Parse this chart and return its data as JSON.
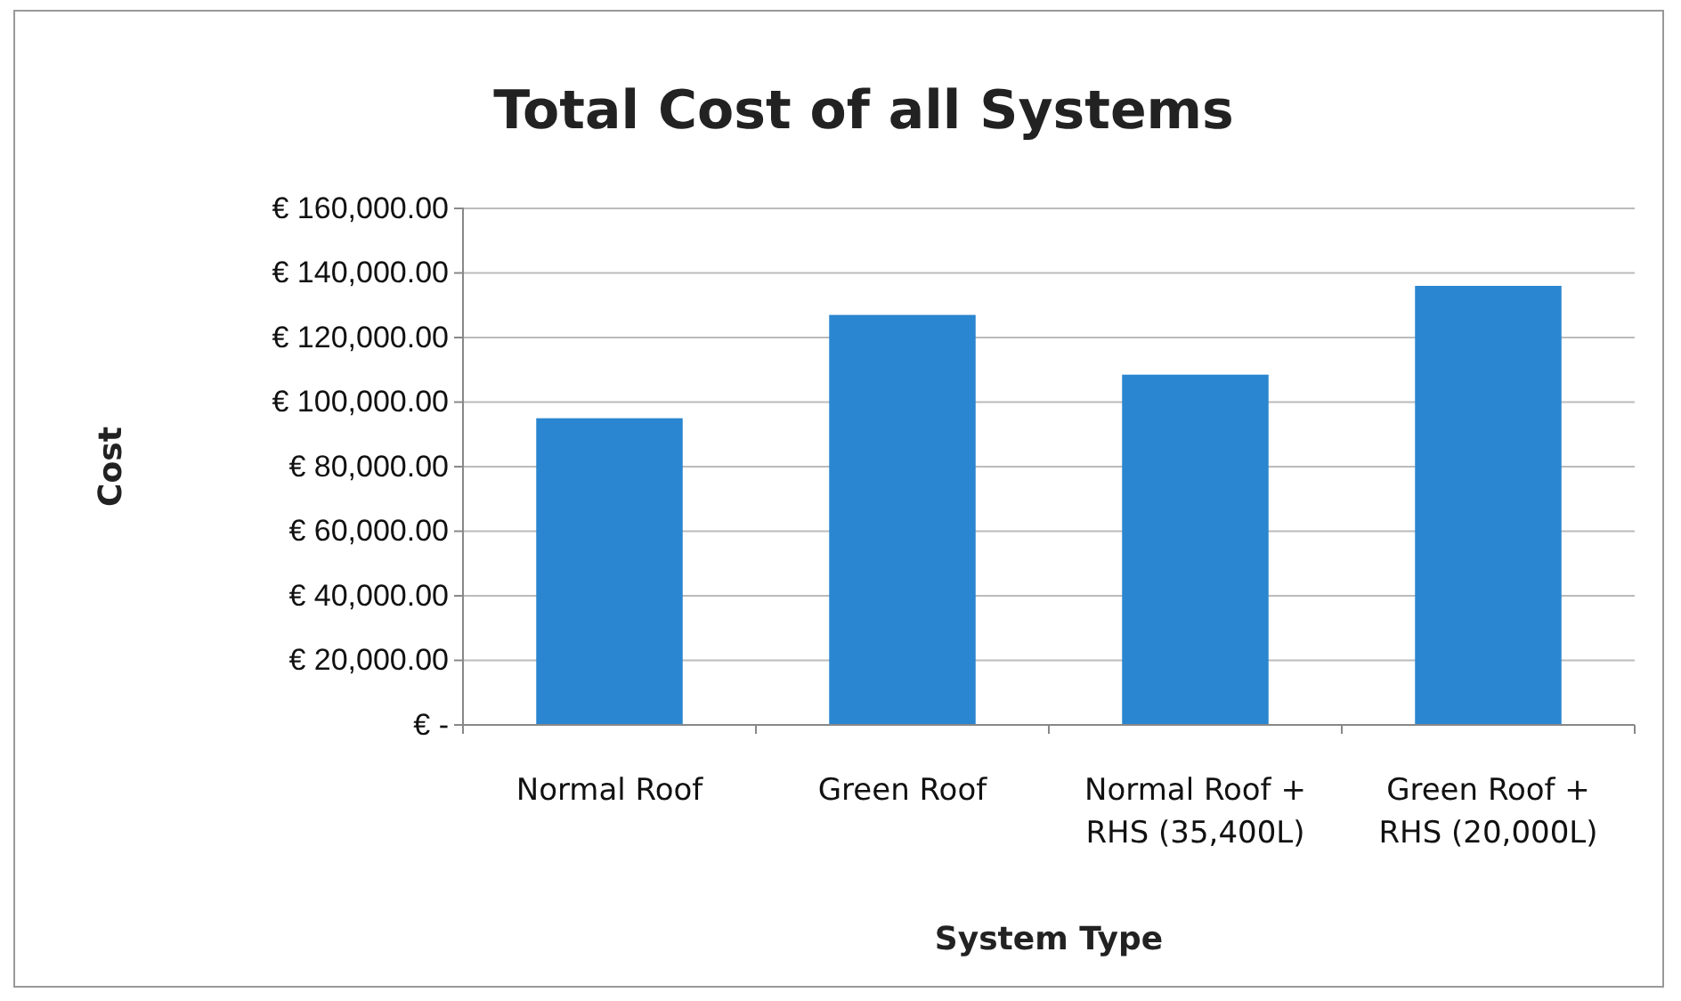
{
  "chart_data": {
    "type": "bar",
    "title": "Total Cost of all Systems",
    "xlabel": "System Type",
    "ylabel": "Cost",
    "categories": [
      "Normal Roof",
      "Green Roof",
      "Normal Roof + RHS (35,400L)",
      "Green Roof + RHS (20,000L)"
    ],
    "values": [
      95000,
      127000,
      108500,
      136000
    ],
    "color": "#2a86d0",
    "ylim": [
      0,
      160000
    ],
    "yticks": [
      {
        "value": 0,
        "label": "€ -"
      },
      {
        "value": 20000,
        "label": "€ 20,000.00"
      },
      {
        "value": 40000,
        "label": "€ 40,000.00"
      },
      {
        "value": 60000,
        "label": "€ 60,000.00"
      },
      {
        "value": 80000,
        "label": "€ 80,000.00"
      },
      {
        "value": 100000,
        "label": "€ 100,000.00"
      },
      {
        "value": 120000,
        "label": "€ 120,000.00"
      },
      {
        "value": 140000,
        "label": "€ 140,000.00"
      },
      {
        "value": 160000,
        "label": "€ 160,000.00"
      }
    ],
    "grid": "y"
  }
}
